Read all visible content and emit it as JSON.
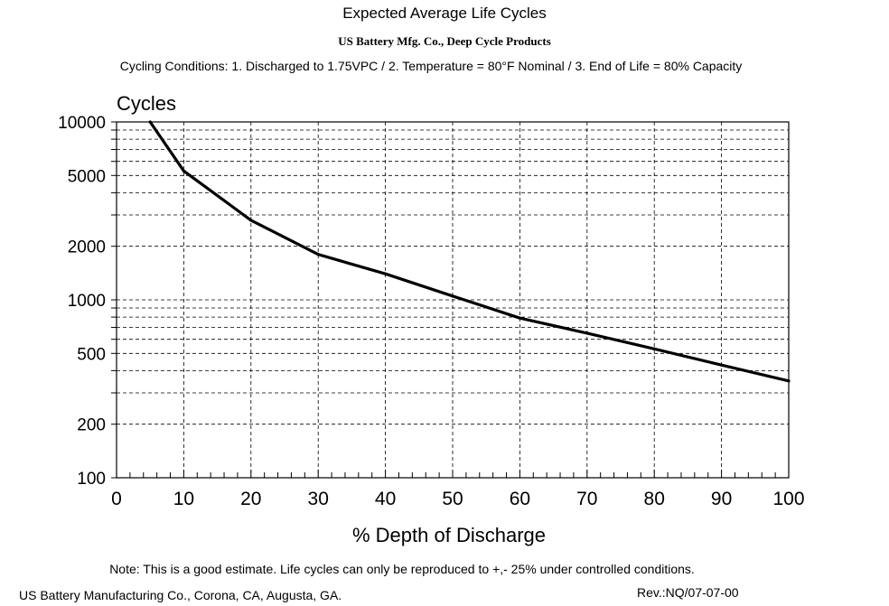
{
  "chart_data": {
    "type": "line",
    "title": "Expected Average Life Cycles",
    "subtitle": "US Battery Mfg. Co., Deep Cycle Products",
    "conditions": "Cycling Conditions: 1. Discharged to 1.75VPC / 2. Temperature = 80°F Nominal / 3. End of Life = 80% Capacity",
    "xlabel": "% Depth of Discharge",
    "ylabel": "Cycles",
    "xlim": [
      0,
      100
    ],
    "ylim": [
      100,
      10000
    ],
    "yscale": "log",
    "x_ticks": [
      "0",
      "10",
      "20",
      "30",
      "40",
      "50",
      "60",
      "70",
      "80",
      "90",
      "100"
    ],
    "y_ticks": [
      {
        "value": 10000,
        "label": "10000"
      },
      {
        "value": 5000,
        "label": "5000"
      },
      {
        "value": 2000,
        "label": "2000"
      },
      {
        "value": 1000,
        "label": "1000"
      },
      {
        "value": 500,
        "label": "500"
      },
      {
        "value": 200,
        "label": "200"
      },
      {
        "value": 100,
        "label": "100"
      }
    ],
    "grid": true,
    "series": [
      {
        "name": "Expected Average Life Cycles",
        "x": [
          5,
          10,
          20,
          30,
          40,
          50,
          60,
          70,
          80,
          90,
          100
        ],
        "values": [
          10000,
          5300,
          2800,
          1800,
          1400,
          1050,
          790,
          650,
          530,
          430,
          350
        ]
      }
    ]
  },
  "footer": {
    "note": "Note: This is a good estimate. Life cycles  can only be reproduced to +,- 25% under controlled conditions.",
    "company": "US Battery Manufacturing Co., Corona, CA, Augusta, GA.",
    "revision": "Rev.:NQ/07-07-00"
  }
}
